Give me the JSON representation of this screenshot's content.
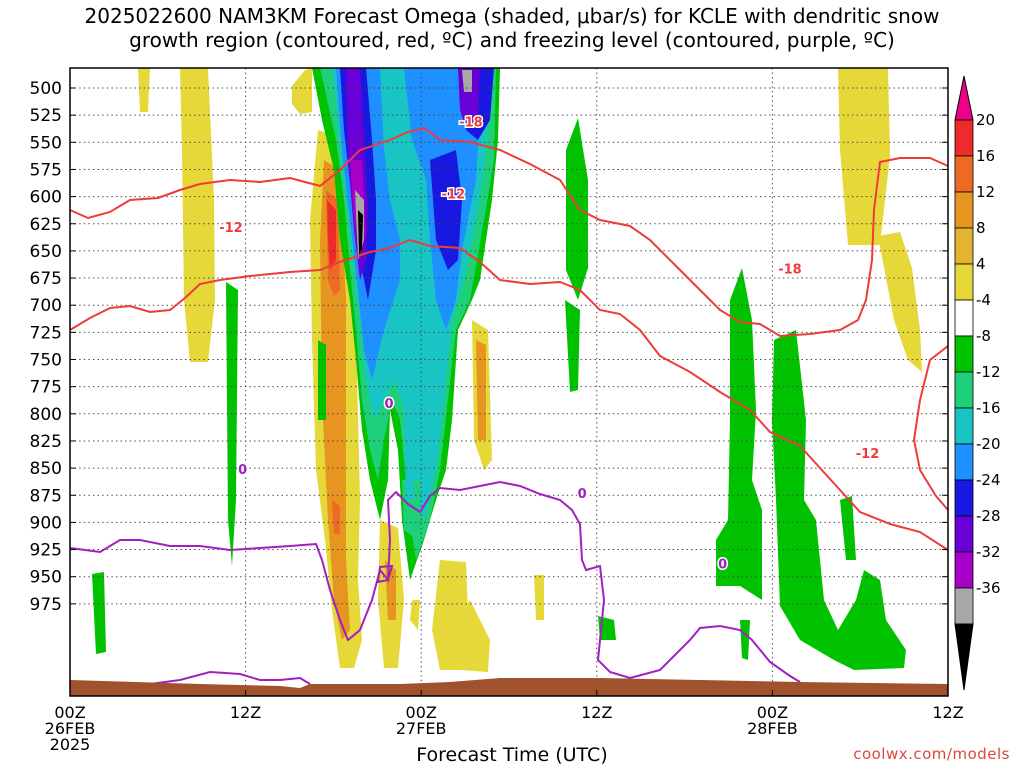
{
  "title": {
    "line1": "2025022600 NAM3KM Forecast Omega (shaded, μbar/s) for KCLE with dendritic snow",
    "line2": "growth region (contoured, red, ºC) and freezing level (contoured, purple, ºC)"
  },
  "xlabel": "Forecast Time (UTC)",
  "credit": "coolwx.com/models",
  "chart_data": {
    "type": "heatmap",
    "title": "2025022600 NAM3KM Forecast Omega (shaded, μbar/s) for KCLE with dendritic snow growth region (contoured, red, ºC) and freezing level (contoured, purple, ºC)",
    "xlabel": "Forecast Time (UTC)",
    "ylabel": "",
    "x_range_hours": [
      0,
      60
    ],
    "y_levels_hPa": [
      500,
      525,
      550,
      575,
      600,
      625,
      650,
      675,
      700,
      725,
      750,
      775,
      800,
      825,
      850,
      875,
      900,
      925,
      950,
      975
    ],
    "y_reversed": true,
    "grid": true,
    "x_ticks": [
      {
        "hour": 0,
        "lines": [
          "00Z",
          "26FEB",
          "2025"
        ]
      },
      {
        "hour": 12,
        "lines": [
          "12Z"
        ]
      },
      {
        "hour": 24,
        "lines": [
          "00Z",
          "27FEB"
        ]
      },
      {
        "hour": 36,
        "lines": [
          "12Z"
        ]
      },
      {
        "hour": 48,
        "lines": [
          "00Z",
          "28FEB"
        ]
      },
      {
        "hour": 60,
        "lines": [
          "12Z"
        ]
      }
    ],
    "colorbar": {
      "labels": [
        "20",
        "16",
        "12",
        "8",
        "4",
        "-4",
        "-8",
        "-12",
        "-16",
        "-20",
        "-24",
        "-28",
        "-32",
        "-36"
      ],
      "colors": [
        "#ee0088",
        "#ee2a2a",
        "#ee6a22",
        "#e69620",
        "#e4b430",
        "#e6d838",
        "#ffffff",
        "#00c200",
        "#1fd07a",
        "#18c4c4",
        "#1e90ff",
        "#1818e0",
        "#6a00d8",
        "#a800c8",
        "#a8a8a8",
        "#000000"
      ]
    },
    "contour_labels": [
      {
        "text": "-12",
        "color": "#ee3b3b",
        "hour": 11.0,
        "pressure": 628
      },
      {
        "text": "-18",
        "color": "#ee3b3b",
        "hour": 27.4,
        "pressure": 531
      },
      {
        "text": "-12",
        "color": "#ee3b3b",
        "hour": 26.2,
        "pressure": 597
      },
      {
        "text": "-18",
        "color": "#ee3b3b",
        "hour": 49.2,
        "pressure": 666
      },
      {
        "text": "-12",
        "color": "#ee3b3b",
        "hour": 54.5,
        "pressure": 836
      },
      {
        "text": "0",
        "color": "#a020c0",
        "hour": 11.8,
        "pressure": 851
      },
      {
        "text": "0",
        "color": "#a020c0",
        "hour": 21.8,
        "pressure": 790
      },
      {
        "text": "0",
        "color": "#a020c0",
        "hour": 35.0,
        "pressure": 873
      },
      {
        "text": "0",
        "color": "#a020c0",
        "hour": 44.6,
        "pressure": 938
      }
    ]
  }
}
